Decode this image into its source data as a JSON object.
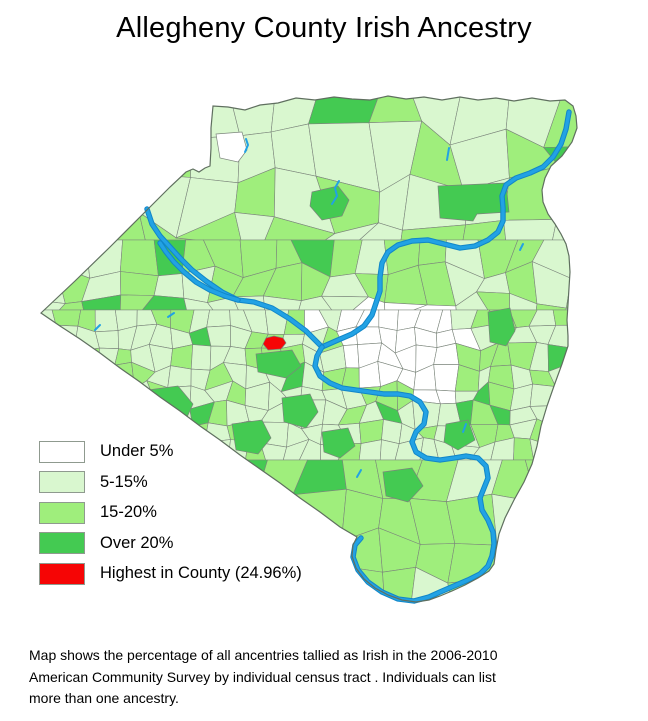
{
  "title": "Allegheny County Irish Ancestry",
  "legend": {
    "items": [
      {
        "label": "Under 5%",
        "color": "#ffffff"
      },
      {
        "label": "5-15%",
        "color": "#d9f7cf"
      },
      {
        "label": "15-20%",
        "color": "#9fee7c"
      },
      {
        "label": "Over 20%",
        "color": "#44ca52"
      },
      {
        "label": "Highest in County (24.96%)",
        "color": "#f60505"
      }
    ]
  },
  "map": {
    "water_color": "#22a2e4",
    "water_edge_color": "#1186c8",
    "tract_border_color": "#7b857b",
    "county_border_color": "#5f6f5f"
  },
  "caption": "Map shows the percentage of all ancentries tallied as Irish in the 2006-2010\nAmerican Community Survey by individual census tract . Individuals can list\nmore than one ancestry."
}
